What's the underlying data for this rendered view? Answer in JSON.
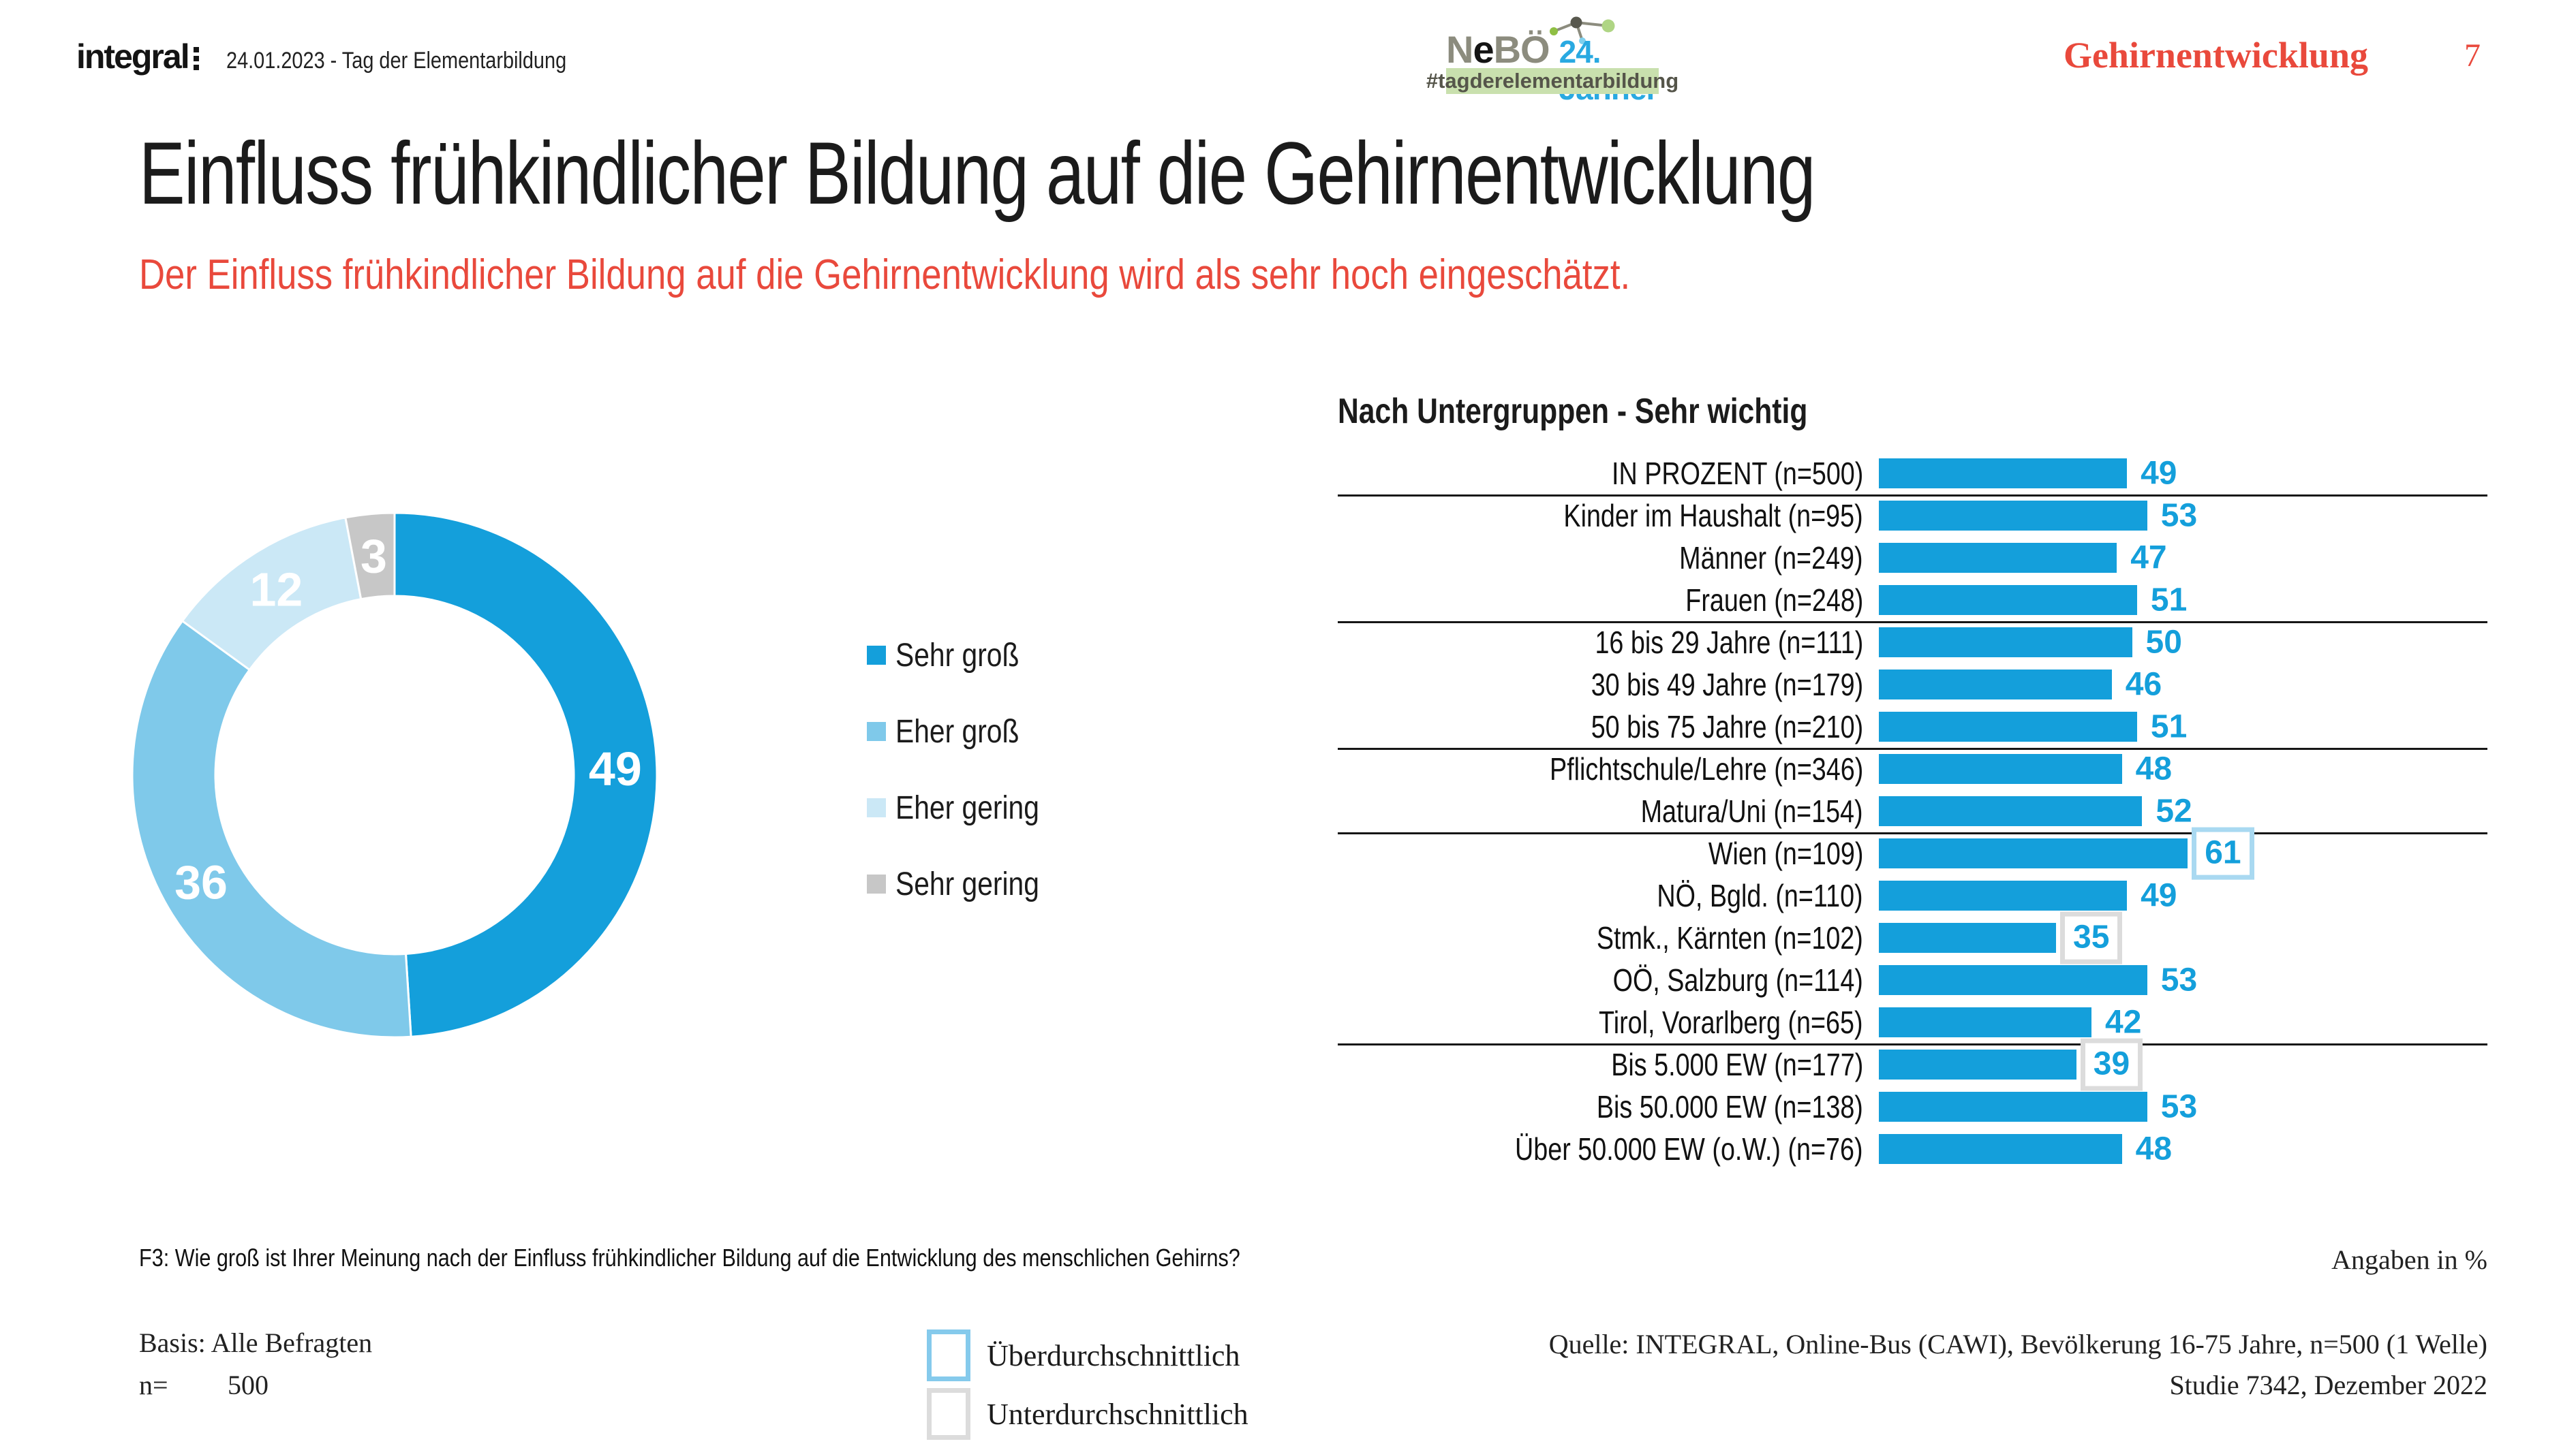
{
  "colors": {
    "accent_blue": "#149FDB",
    "medium_blue": "#7FC9EA",
    "light_blue": "#CBE8F6",
    "gray": "#C7C7C7",
    "red": "#E9493C",
    "text": "#1B1B1B",
    "above_box_border": "#A9D9F1",
    "below_box_border": "#DCDCDC",
    "footer_above_border": "#85CAEC",
    "footer_below_border": "#DCDCDC",
    "nebo_gray": "#8C8C7E",
    "nebo_blue": "#29A9E1",
    "nebo_band_bg": "#C9E0AE",
    "nebo_band_text": "#55554A"
  },
  "header": {
    "logo_text": "integral",
    "date_line": "24.01.2023 - Tag der Elementarbildung",
    "nebo": {
      "name_parts": [
        "N",
        "e",
        "BÖ"
      ],
      "date": "24. Jänner",
      "hashtag": "#tagderelementarbildung"
    },
    "section": "Gehirnentwicklung",
    "page": "7"
  },
  "title": "Einfluss frühkindlicher Bildung auf die Gehirnentwicklung",
  "subtitle": "Der Einfluss frühkindlicher Bildung auf die Gehirnentwicklung wird als sehr hoch eingeschätzt.",
  "chart_data": [
    {
      "type": "pie",
      "subtype": "donut",
      "labels": [
        "Sehr groß",
        "Eher groß",
        "Eher gering",
        "Sehr gering"
      ],
      "values": [
        49,
        36,
        12,
        3
      ],
      "colors": [
        "#149FDB",
        "#7FC9EA",
        "#CBE8F6",
        "#C7C7C7"
      ],
      "value_label_color": "#FFFFFF",
      "legend_position": "right",
      "start_angle_deg": 0,
      "direction": "clockwise"
    },
    {
      "type": "bar",
      "orientation": "horizontal",
      "title": "Nach Untergruppen - Sehr wichtig",
      "unit": "%",
      "categories": [
        "IN PROZENT (n=500)",
        "Kinder im Haushalt (n=95)",
        "Männer (n=249)",
        "Frauen (n=248)",
        "16 bis 29 Jahre (n=111)",
        "30 bis 49 Jahre (n=179)",
        "50 bis 75 Jahre (n=210)",
        "Pflichtschule/Lehre (n=346)",
        "Matura/Uni (n=154)",
        "Wien (n=109)",
        "NÖ, Bgld. (n=110)",
        "Stmk., Kärnten (n=102)",
        "OÖ, Salzburg (n=114)",
        "Tirol, Vorarlberg (n=65)",
        "Bis 5.000 EW (n=177)",
        "Bis 50.000 EW (n=138)",
        "Über 50.000 EW (o.W.) (n=76)"
      ],
      "values": [
        49,
        53,
        47,
        51,
        50,
        46,
        51,
        48,
        52,
        61,
        49,
        35,
        53,
        42,
        39,
        53,
        48
      ],
      "highlights": [
        {
          "index": 9,
          "type": "above"
        },
        {
          "index": 11,
          "type": "below"
        },
        {
          "index": 14,
          "type": "below"
        }
      ],
      "separators_after": [
        0,
        3,
        6,
        8,
        13
      ],
      "bar_color": "#149FDB",
      "value_color": "#149FDB",
      "xlim": [
        0,
        70
      ],
      "grid": false
    }
  ],
  "footer": {
    "question": "F3: Wie groß ist Ihrer Meinung nach der Einfluss frühkindlicher Bildung auf die Entwicklung des menschlichen Gehirns?",
    "units_note": "Angaben in %",
    "basis": "Basis: Alle Befragten",
    "n_label": "n=",
    "n_value": "500",
    "legend": [
      {
        "label": "Überdurchschnittlich",
        "type": "above"
      },
      {
        "label": "Unterdurchschnittlich",
        "type": "below"
      }
    ],
    "source_line1": "Quelle: INTEGRAL, Online-Bus (CAWI),  Bevölkerung 16-75 Jahre, n=500 (1 Welle)",
    "source_line2": "Studie 7342, Dezember 2022"
  }
}
